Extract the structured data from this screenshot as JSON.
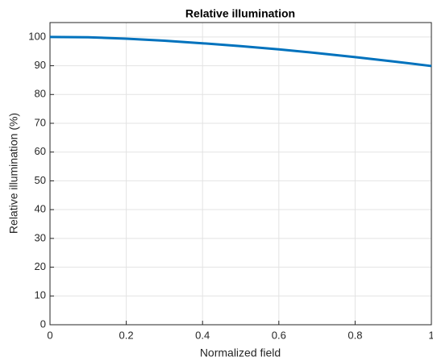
{
  "chart_data": {
    "type": "line",
    "title": "Relative illumination",
    "xlabel": "Normalized field",
    "ylabel": "Relative illumination (%)",
    "x": [
      0,
      0.1,
      0.2,
      0.3,
      0.4,
      0.5,
      0.6,
      0.7,
      0.8,
      0.9,
      1
    ],
    "series": [
      {
        "name": "Relative illumination",
        "color": "#0072bd",
        "values": [
          100,
          99.9,
          99.4,
          98.7,
          97.8,
          96.8,
          95.7,
          94.4,
          93.0,
          91.5,
          89.9
        ]
      }
    ],
    "xlim": [
      0,
      1
    ],
    "xticks": [
      0,
      0.2,
      0.4,
      0.6,
      0.8,
      1
    ],
    "ylim": [
      0,
      105
    ],
    "yticks": [
      0,
      10,
      20,
      30,
      40,
      50,
      60,
      70,
      80,
      90,
      100
    ],
    "grid": true
  }
}
